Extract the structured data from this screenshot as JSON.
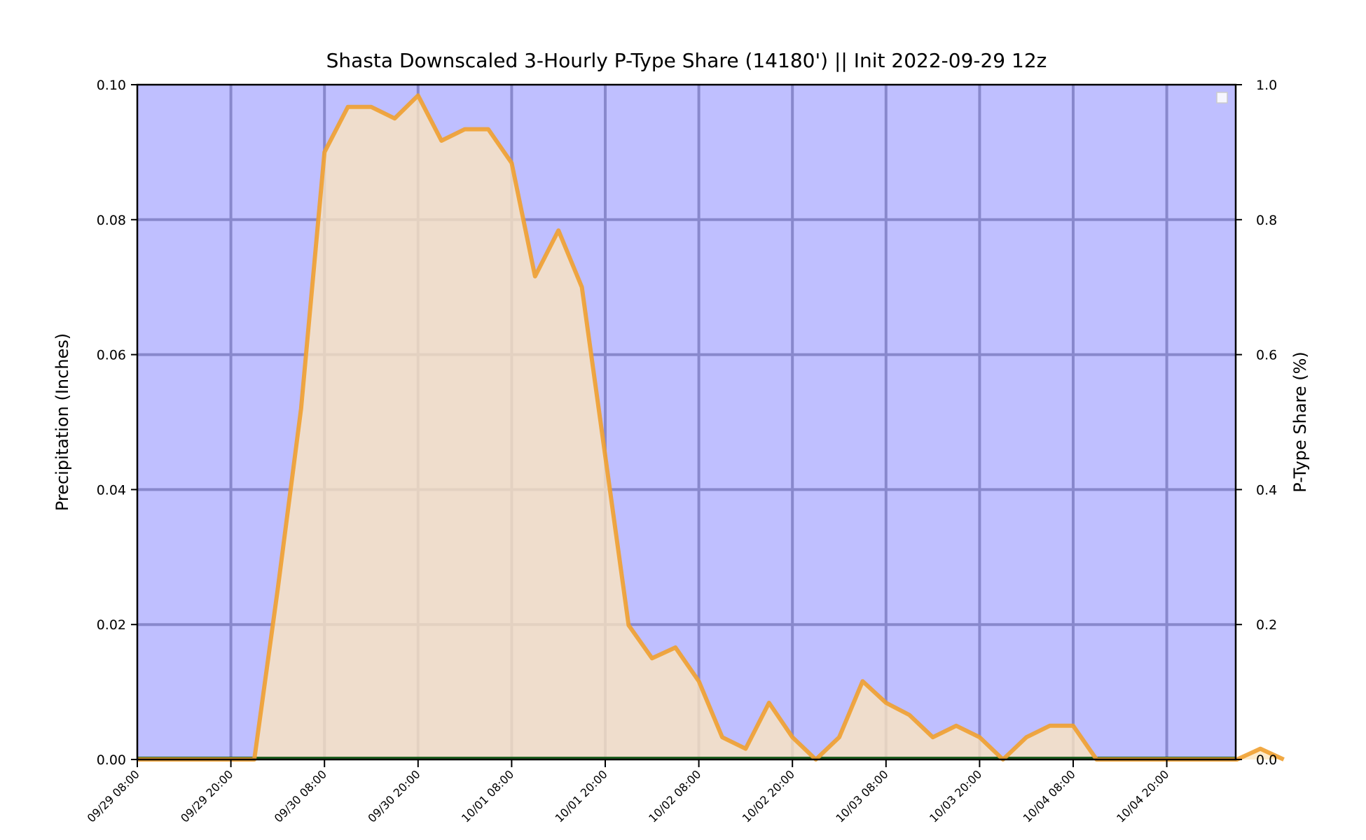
{
  "chart_data": {
    "type": "area",
    "title": "Shasta Downscaled 3-Hourly P-Type Share (14180') || Init 2022-09-29 12z",
    "ylabel": "Precipitation (Inches)",
    "y2label": "P-Type Share (%)",
    "ylim": [
      0,
      0.1
    ],
    "y2lim": [
      0,
      1.0
    ],
    "yticks": [
      "0.00",
      "0.02",
      "0.04",
      "0.06",
      "0.08",
      "0.10"
    ],
    "y2ticks": [
      "0.0",
      "0.2",
      "0.4",
      "0.6",
      "0.8",
      "1.0"
    ],
    "xticks": [
      "09/29 08:00",
      "09/29 20:00",
      "09/30 08:00",
      "09/30 20:00",
      "10/01 08:00",
      "10/01 20:00",
      "10/02 08:00",
      "10/02 20:00",
      "10/03 08:00",
      "10/03 20:00",
      "10/04 08:00",
      "10/04 20:00"
    ],
    "x_start": "09/29 08:00",
    "x_step_hours": 3,
    "grid": true,
    "legend": "top-right",
    "colors": {
      "background": "#bfbfff",
      "grid": "#8888cc",
      "fill": "#fde6be",
      "line": "#f0a030",
      "baseline": "#1f5f1f"
    },
    "series": [
      {
        "values": [
          0,
          0,
          0,
          0,
          0,
          0,
          0.0252,
          0.052,
          0.09,
          0.0967,
          0.0967,
          0.095,
          0.0984,
          0.0917,
          0.0934,
          0.0934,
          0.0884,
          0.0716,
          0.0784,
          0.07,
          0.045,
          0.0199,
          0.015,
          0.0166,
          0.0116,
          0.0033,
          0.0016,
          0.0084,
          0.0033,
          0,
          0.0033,
          0.0116,
          0.0084,
          0.0066,
          0.0033,
          0.005,
          0.0033,
          0,
          0.0033,
          0.005,
          0.005,
          0,
          0,
          0,
          0,
          0,
          0,
          0,
          0.0016,
          0
        ]
      }
    ]
  }
}
